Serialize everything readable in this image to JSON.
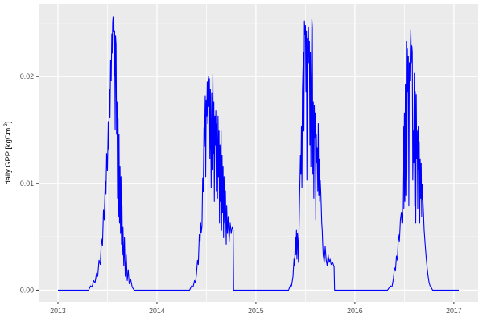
{
  "figure": {
    "background": "#ffffff",
    "panel_background": "#ebebeb",
    "grid_major_color": "#ffffff",
    "grid_minor_color": "#ffffff",
    "tick_mark_color": "#333333",
    "tick_label_color": "#4d4d4d",
    "axis_title_color": "#000000",
    "line_color": "#0000ff"
  },
  "chart_data": {
    "type": "line",
    "title": "",
    "xlabel": "",
    "ylabel": "daily GPP [kgCm⁻²]",
    "ylabel_parts": [
      "daily GPP [kgCm",
      "-2",
      "]"
    ],
    "legend": "none",
    "grid": true,
    "xlim": [
      2012.805,
      2017.245
    ],
    "ylim": [
      -0.0011,
      0.0268
    ],
    "x_ticks": [
      {
        "value": 2013,
        "label": "2013"
      },
      {
        "value": 2014,
        "label": "2014"
      },
      {
        "value": 2015,
        "label": "2015"
      },
      {
        "value": 2016,
        "label": "2016"
      },
      {
        "value": 2017,
        "label": "2017"
      }
    ],
    "y_ticks": [
      {
        "value": 0.0,
        "label": "0.00"
      },
      {
        "value": 0.01,
        "label": "0.01"
      },
      {
        "value": 0.02,
        "label": "0.02"
      }
    ],
    "x_minor": [
      2013.5,
      2014.5,
      2015.5,
      2016.5
    ],
    "y_minor": [
      0.005,
      0.015,
      0.025
    ],
    "series": [
      {
        "name": "daily GPP",
        "color": "#0000ff",
        "points": [
          [
            2013.0,
            0
          ],
          [
            2013.31,
            0
          ],
          [
            2013.33,
            0.0004
          ],
          [
            2013.345,
            0.0003
          ],
          [
            2013.36,
            0.0009
          ],
          [
            2013.375,
            0.0007
          ],
          [
            2013.39,
            0.0016
          ],
          [
            2013.402,
            0.0013
          ],
          [
            2013.415,
            0.0028
          ],
          [
            2013.428,
            0.0024
          ],
          [
            2013.44,
            0.0048
          ],
          [
            2013.45,
            0.0042
          ],
          [
            2013.46,
            0.0075
          ],
          [
            2013.468,
            0.0066
          ],
          [
            2013.478,
            0.0102
          ],
          [
            2013.485,
            0.009
          ],
          [
            2013.492,
            0.0128
          ],
          [
            2013.5,
            0.0112
          ],
          [
            2013.508,
            0.0158
          ],
          [
            2013.513,
            0.0132
          ],
          [
            2013.52,
            0.0188
          ],
          [
            2013.526,
            0.0162
          ],
          [
            2013.532,
            0.0215
          ],
          [
            2013.538,
            0.0196
          ],
          [
            2013.544,
            0.024
          ],
          [
            2013.548,
            0.0222
          ],
          [
            2013.553,
            0.0251
          ],
          [
            2013.557,
            0.0256
          ],
          [
            2013.561,
            0.0242
          ],
          [
            2013.565,
            0.0252
          ],
          [
            2013.569,
            0.0201
          ],
          [
            2013.573,
            0.0243
          ],
          [
            2013.578,
            0.015
          ],
          [
            2013.582,
            0.0238
          ],
          [
            2013.587,
            0.023
          ],
          [
            2013.592,
            0.0146
          ],
          [
            2013.597,
            0.0176
          ],
          [
            2013.602,
            0.0086
          ],
          [
            2013.607,
            0.0161
          ],
          [
            2013.612,
            0.0069
          ],
          [
            2013.617,
            0.0146
          ],
          [
            2013.622,
            0.0063
          ],
          [
            2013.627,
            0.0116
          ],
          [
            2013.632,
            0.0053
          ],
          [
            2013.637,
            0.0106
          ],
          [
            2013.642,
            0.0043
          ],
          [
            2013.647,
            0.0079
          ],
          [
            2013.652,
            0.0033
          ],
          [
            2013.657,
            0.0059
          ],
          [
            2013.665,
            0.0023
          ],
          [
            2013.672,
            0.0049
          ],
          [
            2013.68,
            0.0013
          ],
          [
            2013.69,
            0.0033
          ],
          [
            2013.7,
            0.0009
          ],
          [
            2013.71,
            0.0019
          ],
          [
            2013.72,
            0.0006
          ],
          [
            2013.735,
            0.001
          ],
          [
            2013.75,
            0.0003
          ],
          [
            2013.77,
            0
          ],
          [
            2014.33,
            0
          ],
          [
            2014.35,
            0.0004
          ],
          [
            2014.365,
            0.0003
          ],
          [
            2014.38,
            0.0009
          ],
          [
            2014.39,
            0.0007
          ],
          [
            2014.4,
            0.0016
          ],
          [
            2014.41,
            0.0028
          ],
          [
            2014.418,
            0.0024
          ],
          [
            2014.428,
            0.0052
          ],
          [
            2014.436,
            0.0046
          ],
          [
            2014.442,
            0.0063
          ],
          [
            2014.448,
            0.0054
          ],
          [
            2014.455,
            0.006
          ],
          [
            2014.462,
            0.0105
          ],
          [
            2014.468,
            0.0092
          ],
          [
            2014.475,
            0.0152
          ],
          [
            2014.48,
            0.0135
          ],
          [
            2014.488,
            0.0182
          ],
          [
            2014.493,
            0.0106
          ],
          [
            2014.498,
            0.0178
          ],
          [
            2014.503,
            0.0163
          ],
          [
            2014.508,
            0.0195
          ],
          [
            2014.514,
            0.0156
          ],
          [
            2014.52,
            0.02
          ],
          [
            2014.525,
            0.0172
          ],
          [
            2014.53,
            0.0198
          ],
          [
            2014.535,
            0.0123
          ],
          [
            2014.54,
            0.0188
          ],
          [
            2014.548,
            0.0096
          ],
          [
            2014.553,
            0.0185
          ],
          [
            2014.558,
            0.0113
          ],
          [
            2014.565,
            0.0202
          ],
          [
            2014.57,
            0.0128
          ],
          [
            2014.575,
            0.0176
          ],
          [
            2014.58,
            0.0083
          ],
          [
            2014.585,
            0.0163
          ],
          [
            2014.59,
            0.0136
          ],
          [
            2014.595,
            0.0168
          ],
          [
            2014.6,
            0.0093
          ],
          [
            2014.605,
            0.0156
          ],
          [
            2014.612,
            0.0086
          ],
          [
            2014.617,
            0.0163
          ],
          [
            2014.622,
            0.0106
          ],
          [
            2014.627,
            0.0149
          ],
          [
            2014.632,
            0.0063
          ],
          [
            2014.637,
            0.0136
          ],
          [
            2014.642,
            0.0083
          ],
          [
            2014.648,
            0.0149
          ],
          [
            2014.653,
            0.0056
          ],
          [
            2014.658,
            0.0126
          ],
          [
            2014.663,
            0.0073
          ],
          [
            2014.668,
            0.0116
          ],
          [
            2014.673,
            0.0049
          ],
          [
            2014.678,
            0.0106
          ],
          [
            2014.685,
            0.0063
          ],
          [
            2014.692,
            0.0093
          ],
          [
            2014.7,
            0.0043
          ],
          [
            2014.705,
            0.0079
          ],
          [
            2014.712,
            0.0053
          ],
          [
            2014.72,
            0.0069
          ],
          [
            2014.73,
            0.0046
          ],
          [
            2014.74,
            0.0063
          ],
          [
            2014.75,
            0.0053
          ],
          [
            2014.76,
            0.0059
          ],
          [
            2014.77,
            0.0056
          ],
          [
            2014.775,
            0
          ],
          [
            2015.33,
            0
          ],
          [
            2015.35,
            0.0005
          ],
          [
            2015.36,
            0.0004
          ],
          [
            2015.375,
            0.0013
          ],
          [
            2015.385,
            0.0029
          ],
          [
            2015.39,
            0.0023
          ],
          [
            2015.4,
            0.0049
          ],
          [
            2015.405,
            0.0033
          ],
          [
            2015.41,
            0.0056
          ],
          [
            2015.415,
            0.0029
          ],
          [
            2015.42,
            0.0053
          ],
          [
            2015.425,
            0.0046
          ],
          [
            2015.43,
            0.0026
          ],
          [
            2015.44,
            0.0079
          ],
          [
            2015.45,
            0.0126
          ],
          [
            2015.455,
            0.0109
          ],
          [
            2015.46,
            0.0153
          ],
          [
            2015.465,
            0.0096
          ],
          [
            2015.47,
            0.0186
          ],
          [
            2015.48,
            0.0223
          ],
          [
            2015.485,
            0.0149
          ],
          [
            2015.49,
            0.0252
          ],
          [
            2015.495,
            0.0239
          ],
          [
            2015.5,
            0.0248
          ],
          [
            2015.505,
            0.0186
          ],
          [
            2015.51,
            0.0243
          ],
          [
            2015.515,
            0.0103
          ],
          [
            2015.52,
            0.0236
          ],
          [
            2015.525,
            0.0226
          ],
          [
            2015.53,
            0.0246
          ],
          [
            2015.535,
            0.0213
          ],
          [
            2015.54,
            0.0233
          ],
          [
            2015.545,
            0.0136
          ],
          [
            2015.55,
            0.0223
          ],
          [
            2015.555,
            0.0116
          ],
          [
            2015.56,
            0.0193
          ],
          [
            2015.565,
            0.0254
          ],
          [
            2015.57,
            0.0246
          ],
          [
            2015.575,
            0.0109
          ],
          [
            2015.58,
            0.0176
          ],
          [
            2015.585,
            0.0086
          ],
          [
            2015.59,
            0.0173
          ],
          [
            2015.595,
            0.0143
          ],
          [
            2015.6,
            0.0166
          ],
          [
            2015.605,
            0.0066
          ],
          [
            2015.61,
            0.0146
          ],
          [
            2015.615,
            0.0119
          ],
          [
            2015.62,
            0.0133
          ],
          [
            2015.625,
            0.0093
          ],
          [
            2015.63,
            0.0156
          ],
          [
            2015.635,
            0.0089
          ],
          [
            2015.64,
            0.0123
          ],
          [
            2015.645,
            0.0083
          ],
          [
            2015.65,
            0.0103
          ],
          [
            2015.655,
            0.0093
          ],
          [
            2015.66,
            0.0079
          ],
          [
            2015.665,
            0.0063
          ],
          [
            2015.67,
            0.0056
          ],
          [
            2015.675,
            0.0043
          ],
          [
            2015.68,
            0.0033
          ],
          [
            2015.69,
            0.0026
          ],
          [
            2015.7,
            0.0041
          ],
          [
            2015.71,
            0.0028
          ],
          [
            2015.72,
            0.0023
          ],
          [
            2015.73,
            0.0033
          ],
          [
            2015.74,
            0.0026
          ],
          [
            2015.75,
            0.0029
          ],
          [
            2015.76,
            0.0024
          ],
          [
            2015.775,
            0.0026
          ],
          [
            2015.79,
            0.0022
          ],
          [
            2015.795,
            0
          ],
          [
            2016.33,
            0
          ],
          [
            2016.36,
            0.0004
          ],
          [
            2016.375,
            0.0003
          ],
          [
            2016.39,
            0.0011
          ],
          [
            2016.4,
            0.0021
          ],
          [
            2016.41,
            0.0018
          ],
          [
            2016.42,
            0.0032
          ],
          [
            2016.43,
            0.0028
          ],
          [
            2016.44,
            0.0052
          ],
          [
            2016.45,
            0.0046
          ],
          [
            2016.46,
            0.0066
          ],
          [
            2016.47,
            0.0073
          ],
          [
            2016.475,
            0.0063
          ],
          [
            2016.48,
            0.0071
          ],
          [
            2016.49,
            0.0153
          ],
          [
            2016.495,
            0.0076
          ],
          [
            2016.5,
            0.0166
          ],
          [
            2016.505,
            0.0083
          ],
          [
            2016.51,
            0.0193
          ],
          [
            2016.515,
            0.0089
          ],
          [
            2016.52,
            0.0233
          ],
          [
            2016.525,
            0.0103
          ],
          [
            2016.53,
            0.0226
          ],
          [
            2016.535,
            0.0186
          ],
          [
            2016.54,
            0.0219
          ],
          [
            2016.545,
            0.0079
          ],
          [
            2016.55,
            0.0213
          ],
          [
            2016.555,
            0.0196
          ],
          [
            2016.56,
            0.0226
          ],
          [
            2016.565,
            0.0244
          ],
          [
            2016.57,
            0.0213
          ],
          [
            2016.575,
            0.0229
          ],
          [
            2016.58,
            0.0223
          ],
          [
            2016.585,
            0.0103
          ],
          [
            2016.59,
            0.0149
          ],
          [
            2016.595,
            0.0119
          ],
          [
            2016.6,
            0.0203
          ],
          [
            2016.605,
            0.0079
          ],
          [
            2016.61,
            0.0186
          ],
          [
            2016.615,
            0.0063
          ],
          [
            2016.62,
            0.0183
          ],
          [
            2016.625,
            0.0123
          ],
          [
            2016.63,
            0.0149
          ],
          [
            2016.635,
            0.0076
          ],
          [
            2016.64,
            0.0153
          ],
          [
            2016.645,
            0.0113
          ],
          [
            2016.65,
            0.0139
          ],
          [
            2016.655,
            0.0063
          ],
          [
            2016.66,
            0.0123
          ],
          [
            2016.665,
            0.0086
          ],
          [
            2016.67,
            0.0119
          ],
          [
            2016.675,
            0.0069
          ],
          [
            2016.68,
            0.0099
          ],
          [
            2016.69,
            0.0079
          ],
          [
            2016.7,
            0.0056
          ],
          [
            2016.71,
            0.0043
          ],
          [
            2016.72,
            0.0031
          ],
          [
            2016.73,
            0.0021
          ],
          [
            2016.74,
            0.0013
          ],
          [
            2016.75,
            0.0007
          ],
          [
            2016.76,
            0.0004
          ],
          [
            2016.775,
            0.0002
          ],
          [
            2016.785,
            0
          ],
          [
            2017.05,
            0
          ]
        ]
      }
    ]
  }
}
